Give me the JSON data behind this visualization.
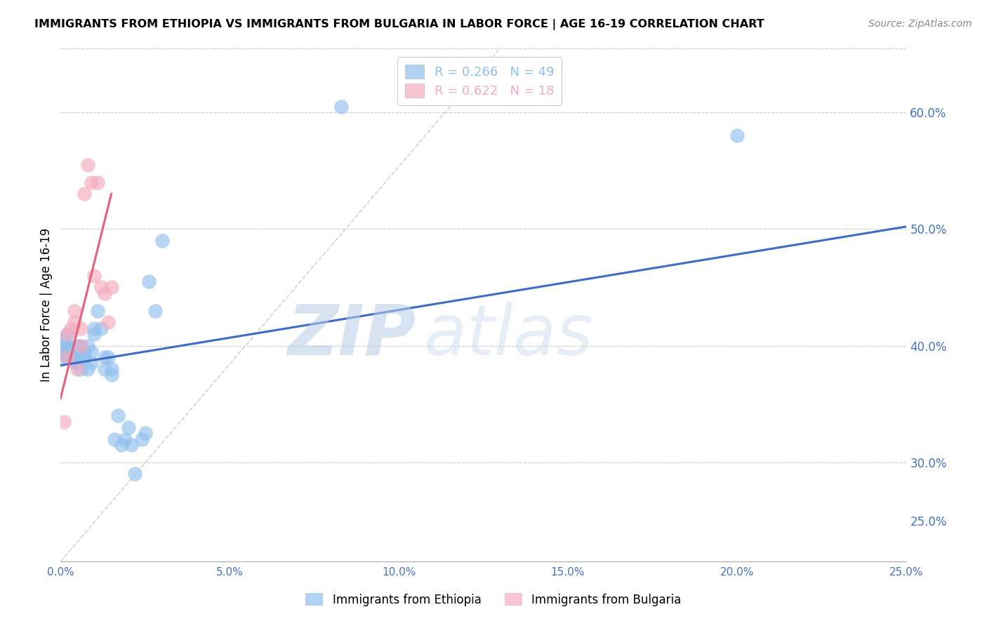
{
  "title": "IMMIGRANTS FROM ETHIOPIA VS IMMIGRANTS FROM BULGARIA IN LABOR FORCE | AGE 16-19 CORRELATION CHART",
  "source": "Source: ZipAtlas.com",
  "ylabel": "In Labor Force | Age 16-19",
  "r_ethiopia": 0.266,
  "n_ethiopia": 49,
  "r_bulgaria": 0.622,
  "n_bulgaria": 18,
  "legend_ethiopia": "Immigrants from Ethiopia",
  "legend_bulgaria": "Immigrants from Bulgaria",
  "xlim": [
    0.0,
    0.25
  ],
  "ylim": [
    0.215,
    0.655
  ],
  "xticks": [
    0.0,
    0.05,
    0.1,
    0.15,
    0.2,
    0.25
  ],
  "yticks": [
    0.3,
    0.4,
    0.5,
    0.6
  ],
  "color_ethiopia": "#92C0ED",
  "color_bulgaria": "#F4ABBE",
  "trend_color_ethiopia": "#3A6CC8",
  "trend_color_bulgaria": "#E8607A",
  "watermark_zip": "ZIP",
  "watermark_atlas": "atlas",
  "ethiopia_x": [
    0.001,
    0.001,
    0.001,
    0.001,
    0.002,
    0.002,
    0.002,
    0.002,
    0.003,
    0.003,
    0.003,
    0.004,
    0.004,
    0.004,
    0.005,
    0.005,
    0.005,
    0.006,
    0.006,
    0.006,
    0.007,
    0.007,
    0.008,
    0.008,
    0.009,
    0.009,
    0.01,
    0.01,
    0.011,
    0.012,
    0.013,
    0.013,
    0.014,
    0.015,
    0.015,
    0.016,
    0.017,
    0.018,
    0.019,
    0.02,
    0.021,
    0.022,
    0.024,
    0.025,
    0.026,
    0.028,
    0.03,
    0.083,
    0.2
  ],
  "ethiopia_y": [
    0.39,
    0.395,
    0.4,
    0.405,
    0.39,
    0.395,
    0.4,
    0.41,
    0.39,
    0.395,
    0.4,
    0.385,
    0.39,
    0.395,
    0.385,
    0.39,
    0.4,
    0.38,
    0.39,
    0.4,
    0.39,
    0.395,
    0.38,
    0.4,
    0.385,
    0.395,
    0.41,
    0.415,
    0.43,
    0.415,
    0.39,
    0.38,
    0.39,
    0.375,
    0.38,
    0.32,
    0.34,
    0.315,
    0.32,
    0.33,
    0.315,
    0.29,
    0.32,
    0.325,
    0.455,
    0.43,
    0.49,
    0.605,
    0.58
  ],
  "bulgaria_x": [
    0.001,
    0.002,
    0.002,
    0.003,
    0.004,
    0.004,
    0.005,
    0.006,
    0.006,
    0.007,
    0.008,
    0.009,
    0.01,
    0.011,
    0.012,
    0.013,
    0.014,
    0.015
  ],
  "bulgaria_y": [
    0.335,
    0.39,
    0.41,
    0.415,
    0.42,
    0.43,
    0.38,
    0.4,
    0.415,
    0.53,
    0.555,
    0.54,
    0.46,
    0.54,
    0.45,
    0.445,
    0.42,
    0.45
  ],
  "trend_ethiopia_x0": 0.0,
  "trend_ethiopia_x1": 0.25,
  "trend_ethiopia_y0": 0.383,
  "trend_ethiopia_y1": 0.502,
  "trend_bulgaria_x0": 0.0,
  "trend_bulgaria_x1": 0.015,
  "trend_bulgaria_y0": 0.355,
  "trend_bulgaria_y1": 0.53,
  "ref_line_x0": 0.0,
  "ref_line_y0": 0.215,
  "ref_line_x1": 0.13,
  "ref_line_y1": 0.655
}
